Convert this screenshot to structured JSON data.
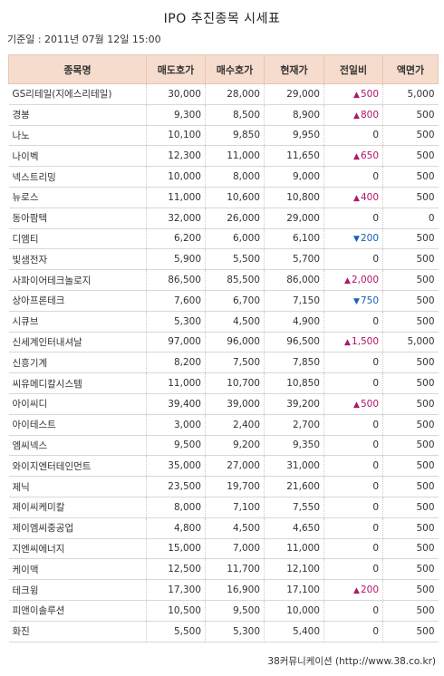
{
  "title": "IPO 추진종목 시세표",
  "date_line": "기준일 : 2011년 07월 12일 15:00",
  "headers": [
    "종목명",
    "매도호가",
    "매수호가",
    "현재가",
    "전일비",
    "액면가"
  ],
  "rows": [
    {
      "name": "GS리테일(지에스리테일)",
      "ask": "30,000",
      "bid": "28,000",
      "price": "29,000",
      "change": "500",
      "dir": "up",
      "par": "5,000"
    },
    {
      "name": "경봉",
      "ask": "9,300",
      "bid": "8,500",
      "price": "8,900",
      "change": "800",
      "dir": "up",
      "par": "500"
    },
    {
      "name": "나노",
      "ask": "10,100",
      "bid": "9,850",
      "price": "9,950",
      "change": "0",
      "dir": "none",
      "par": "500"
    },
    {
      "name": "나이벡",
      "ask": "12,300",
      "bid": "11,000",
      "price": "11,650",
      "change": "650",
      "dir": "up",
      "par": "500"
    },
    {
      "name": "넥스트리밍",
      "ask": "10,000",
      "bid": "8,000",
      "price": "9,000",
      "change": "0",
      "dir": "none",
      "par": "500"
    },
    {
      "name": "뉴로스",
      "ask": "11,000",
      "bid": "10,600",
      "price": "10,800",
      "change": "400",
      "dir": "up",
      "par": "500"
    },
    {
      "name": "동아팜텍",
      "ask": "32,000",
      "bid": "26,000",
      "price": "29,000",
      "change": "0",
      "dir": "none",
      "par": "0"
    },
    {
      "name": "디엠티",
      "ask": "6,200",
      "bid": "6,000",
      "price": "6,100",
      "change": "200",
      "dir": "down",
      "par": "500"
    },
    {
      "name": "빛샘전자",
      "ask": "5,900",
      "bid": "5,500",
      "price": "5,700",
      "change": "0",
      "dir": "none",
      "par": "500"
    },
    {
      "name": "사파이어테크놀로지",
      "ask": "86,500",
      "bid": "85,500",
      "price": "86,000",
      "change": "2,000",
      "dir": "up",
      "par": "500"
    },
    {
      "name": "상아프론테크",
      "ask": "7,600",
      "bid": "6,700",
      "price": "7,150",
      "change": "750",
      "dir": "down",
      "par": "500"
    },
    {
      "name": "시큐브",
      "ask": "5,300",
      "bid": "4,500",
      "price": "4,900",
      "change": "0",
      "dir": "none",
      "par": "500"
    },
    {
      "name": "신세계인터내셔날",
      "ask": "97,000",
      "bid": "96,000",
      "price": "96,500",
      "change": "1,500",
      "dir": "up",
      "par": "5,000"
    },
    {
      "name": "신흥기계",
      "ask": "8,200",
      "bid": "7,500",
      "price": "7,850",
      "change": "0",
      "dir": "none",
      "par": "500"
    },
    {
      "name": "씨유메디칼시스템",
      "ask": "11,000",
      "bid": "10,700",
      "price": "10,850",
      "change": "0",
      "dir": "none",
      "par": "500"
    },
    {
      "name": "아이씨디",
      "ask": "39,400",
      "bid": "39,000",
      "price": "39,200",
      "change": "500",
      "dir": "up",
      "par": "500"
    },
    {
      "name": "아이테스트",
      "ask": "3,000",
      "bid": "2,400",
      "price": "2,700",
      "change": "0",
      "dir": "none",
      "par": "500"
    },
    {
      "name": "엠씨넥스",
      "ask": "9,500",
      "bid": "9,200",
      "price": "9,350",
      "change": "0",
      "dir": "none",
      "par": "500"
    },
    {
      "name": "와이지엔터테인먼트",
      "ask": "35,000",
      "bid": "27,000",
      "price": "31,000",
      "change": "0",
      "dir": "none",
      "par": "500"
    },
    {
      "name": "제닉",
      "ask": "23,500",
      "bid": "19,700",
      "price": "21,600",
      "change": "0",
      "dir": "none",
      "par": "500"
    },
    {
      "name": "제이씨케미칼",
      "ask": "8,000",
      "bid": "7,100",
      "price": "7,550",
      "change": "0",
      "dir": "none",
      "par": "500"
    },
    {
      "name": "제이엠씨중공업",
      "ask": "4,800",
      "bid": "4,500",
      "price": "4,650",
      "change": "0",
      "dir": "none",
      "par": "500"
    },
    {
      "name": "지엔씨에너지",
      "ask": "15,000",
      "bid": "7,000",
      "price": "11,000",
      "change": "0",
      "dir": "none",
      "par": "500"
    },
    {
      "name": "케이맥",
      "ask": "12,500",
      "bid": "11,700",
      "price": "12,100",
      "change": "0",
      "dir": "none",
      "par": "500"
    },
    {
      "name": "테크윙",
      "ask": "17,300",
      "bid": "16,900",
      "price": "17,100",
      "change": "200",
      "dir": "up",
      "par": "500"
    },
    {
      "name": "피앤이솔루션",
      "ask": "10,500",
      "bid": "9,500",
      "price": "10,000",
      "change": "0",
      "dir": "none",
      "par": "500"
    },
    {
      "name": "화진",
      "ask": "5,500",
      "bid": "5,300",
      "price": "5,400",
      "change": "0",
      "dir": "none",
      "par": "500"
    }
  ],
  "footer": "38커뮤니케이션 (http://www.38.co.kr)",
  "colors": {
    "up": "#b0166a",
    "down": "#1a5fb4",
    "header_bg": "#f6dccd"
  }
}
